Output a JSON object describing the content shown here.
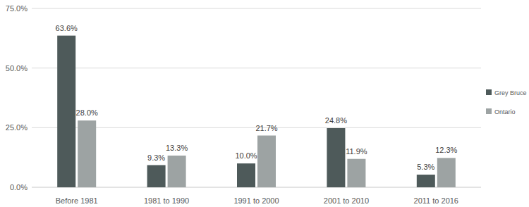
{
  "chart_data": {
    "type": "bar",
    "categories": [
      "Before 1981",
      "1981 to 1990",
      "1991 to 2000",
      "2001 to 2010",
      "2011 to 2016"
    ],
    "series": [
      {
        "name": "Grey Bruce",
        "color": "#4e5a5a",
        "values": [
          63.6,
          9.3,
          10.0,
          24.8,
          5.3
        ],
        "value_labels": [
          "63.6%",
          "9.3%",
          "10.0%",
          "24.8%",
          "5.3%"
        ]
      },
      {
        "name": "Ontario",
        "color": "#9da3a3",
        "values": [
          28.0,
          13.3,
          21.7,
          11.9,
          12.3
        ],
        "value_labels": [
          "28.0%",
          "13.3%",
          "21.7%",
          "11.9%",
          "12.3%"
        ]
      }
    ],
    "ylim": [
      0,
      75
    ],
    "yticks": [
      {
        "value": 0,
        "label": "0.0%"
      },
      {
        "value": 25,
        "label": "25.0%"
      },
      {
        "value": 50,
        "label": "50.0%"
      },
      {
        "value": 75,
        "label": "75.0%"
      }
    ],
    "grid": true,
    "legend": "right",
    "data_labels": true
  }
}
